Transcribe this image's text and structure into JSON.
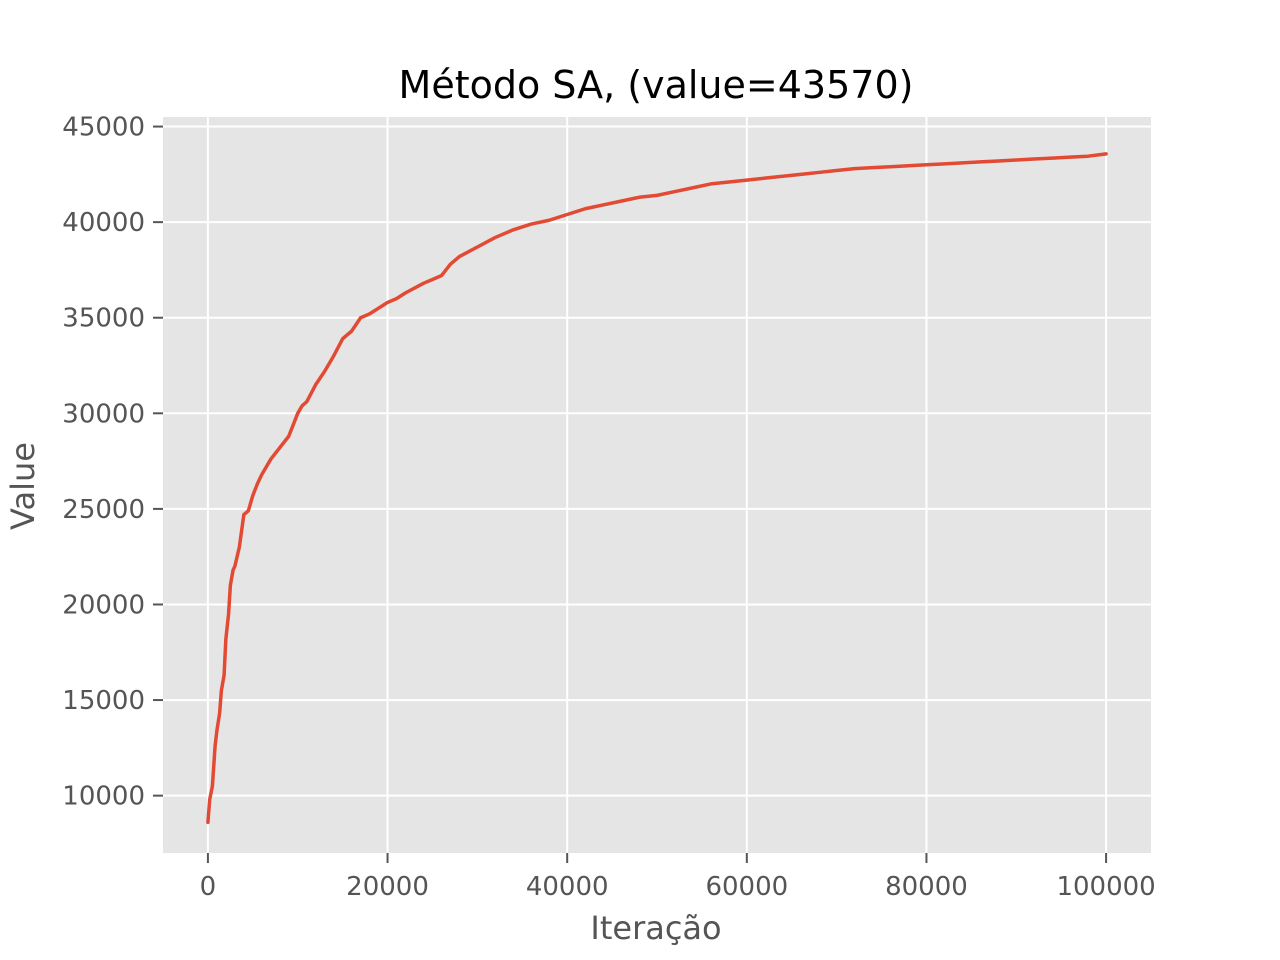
{
  "chart_data": {
    "type": "line",
    "title": "Método SA, (value=43570)",
    "xlabel": "Iteração",
    "ylabel": "Value",
    "xlim": [
      -5000,
      105000
    ],
    "ylim": [
      7000,
      45500
    ],
    "x_ticks": [
      0,
      20000,
      40000,
      60000,
      80000,
      100000
    ],
    "x_tick_labels": [
      "0",
      "20000",
      "40000",
      "60000",
      "80000",
      "100000"
    ],
    "y_ticks": [
      10000,
      15000,
      20000,
      25000,
      30000,
      35000,
      40000,
      45000
    ],
    "y_tick_labels": [
      "10000",
      "15000",
      "20000",
      "25000",
      "30000",
      "35000",
      "40000",
      "45000"
    ],
    "grid": true,
    "style": "ggplot",
    "colors": {
      "plot_background": "#e5e5e5",
      "grid": "#ffffff",
      "line": "#e24a33",
      "tick_text": "#555555",
      "title_text": "#000000"
    },
    "series": [
      {
        "x": [
          0,
          200,
          500,
          800,
          1000,
          1300,
          1500,
          1800,
          2000,
          2300,
          2500,
          2800,
          3000,
          3300,
          3500,
          4000,
          4500,
          5000,
          5500,
          6000,
          6500,
          7000,
          8000,
          9000,
          10000,
          10500,
          11000,
          12000,
          13000,
          14000,
          15000,
          16000,
          17000,
          18000,
          19000,
          20000,
          21000,
          22000,
          24000,
          25000,
          26000,
          27000,
          28000,
          30000,
          32000,
          34000,
          36000,
          38000,
          40000,
          42000,
          44000,
          46000,
          48000,
          50000,
          52000,
          54000,
          56000,
          58000,
          60000,
          62000,
          64000,
          66000,
          68000,
          70000,
          72000,
          74000,
          76000,
          78000,
          80000,
          82000,
          84000,
          86000,
          88000,
          90000,
          92000,
          94000,
          96000,
          98000,
          100000
        ],
        "y": [
          8600,
          9800,
          10500,
          12600,
          13400,
          14300,
          15500,
          16300,
          18200,
          19500,
          21000,
          21800,
          22000,
          22600,
          23000,
          24700,
          24900,
          25700,
          26300,
          26800,
          27200,
          27600,
          28200,
          28800,
          30000,
          30400,
          30600,
          31500,
          32200,
          33000,
          33900,
          34300,
          35000,
          35200,
          35500,
          35800,
          36000,
          36300,
          36800,
          37000,
          37200,
          37800,
          38200,
          38700,
          39200,
          39600,
          39900,
          40100,
          40400,
          40700,
          40900,
          41100,
          41300,
          41400,
          41600,
          41800,
          42000,
          42100,
          42200,
          42300,
          42400,
          42500,
          42600,
          42700,
          42800,
          42850,
          42900,
          42950,
          43000,
          43050,
          43100,
          43150,
          43200,
          43250,
          43300,
          43350,
          43400,
          43450,
          43570
        ]
      }
    ]
  }
}
